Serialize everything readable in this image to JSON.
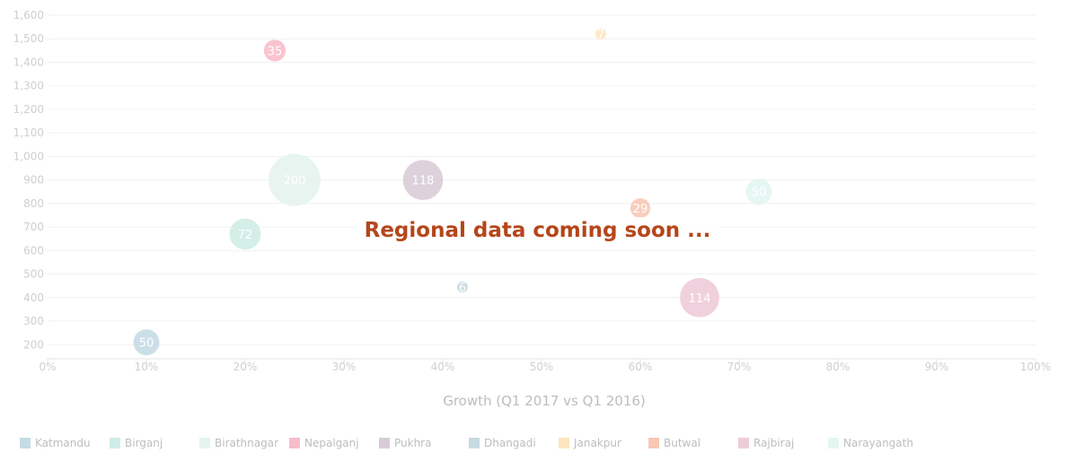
{
  "message": "Regional data coming soon ...",
  "chart_data": {
    "type": "scatter",
    "subtype": "bubble",
    "xlabel": "Growth (Q1 2017 vs Q1 2016)",
    "ylabel": "",
    "xlim": [
      0,
      1
    ],
    "ylim": [
      140,
      1600
    ],
    "x_ticks": [
      "0%",
      "10%",
      "20%",
      "30%",
      "40%",
      "50%",
      "60%",
      "70%",
      "80%",
      "90%",
      "100%"
    ],
    "y_ticks": [
      "200",
      "300",
      "400",
      "500",
      "600",
      "700",
      "800",
      "900",
      "1,000",
      "1,100",
      "1,200",
      "1,300",
      "1,400",
      "1,500",
      "1,600"
    ],
    "grid": true,
    "legend_position": "bottom-left",
    "series": [
      {
        "name": "Katmandu",
        "color": "#c5dbe6",
        "x": 0.1,
        "y": 210,
        "size": 50
      },
      {
        "name": "Birganj",
        "color": "#cfece6",
        "x": 0.2,
        "y": 670,
        "size": 72
      },
      {
        "name": "Birathnagar",
        "color": "#e6f3ee",
        "x": 0.25,
        "y": 900,
        "size": 200
      },
      {
        "name": "Nepalganj",
        "color": "#f9bccb",
        "x": 0.23,
        "y": 1450,
        "size": 35
      },
      {
        "name": "Pukhra",
        "color": "#d9ccd8",
        "x": 0.38,
        "y": 900,
        "size": 118
      },
      {
        "name": "Dhangadi",
        "color": "#c7dae0",
        "x": 0.42,
        "y": 445,
        "size": 6
      },
      {
        "name": "Janakpur",
        "color": "#fde4c0",
        "x": 0.56,
        "y": 1520,
        "size": 7
      },
      {
        "name": "Butwal",
        "color": "#f8c8b5",
        "x": 0.6,
        "y": 780,
        "size": 29
      },
      {
        "name": "Rajbiraj",
        "color": "#eecbd8",
        "x": 0.66,
        "y": 400,
        "size": 114
      },
      {
        "name": "Narayangath",
        "color": "#e3f6f2",
        "x": 0.72,
        "y": 850,
        "size": 50
      }
    ]
  }
}
